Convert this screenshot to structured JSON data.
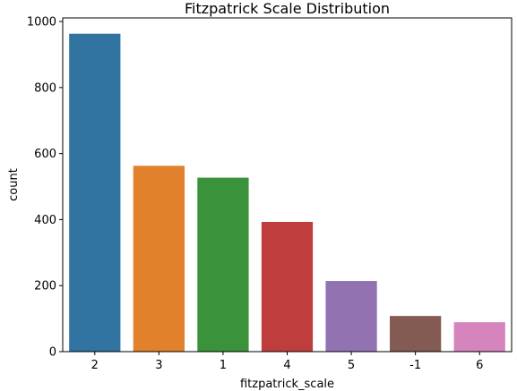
{
  "chart_data": {
    "type": "bar",
    "title": "Fitzpatrick Scale Distribution",
    "xlabel": "fitzpatrick_scale",
    "ylabel": "count",
    "categories": [
      "2",
      "3",
      "1",
      "4",
      "5",
      "-1",
      "6"
    ],
    "values": [
      963,
      563,
      527,
      393,
      214,
      108,
      89
    ],
    "colors": [
      "#3274a1",
      "#e1812c",
      "#3a923a",
      "#c03d3e",
      "#9372b2",
      "#845b53",
      "#d684bd"
    ],
    "ylim": [
      0,
      1011
    ],
    "yticks": [
      0,
      200,
      400,
      600,
      800,
      1000
    ],
    "grid": false,
    "legend": "none"
  }
}
